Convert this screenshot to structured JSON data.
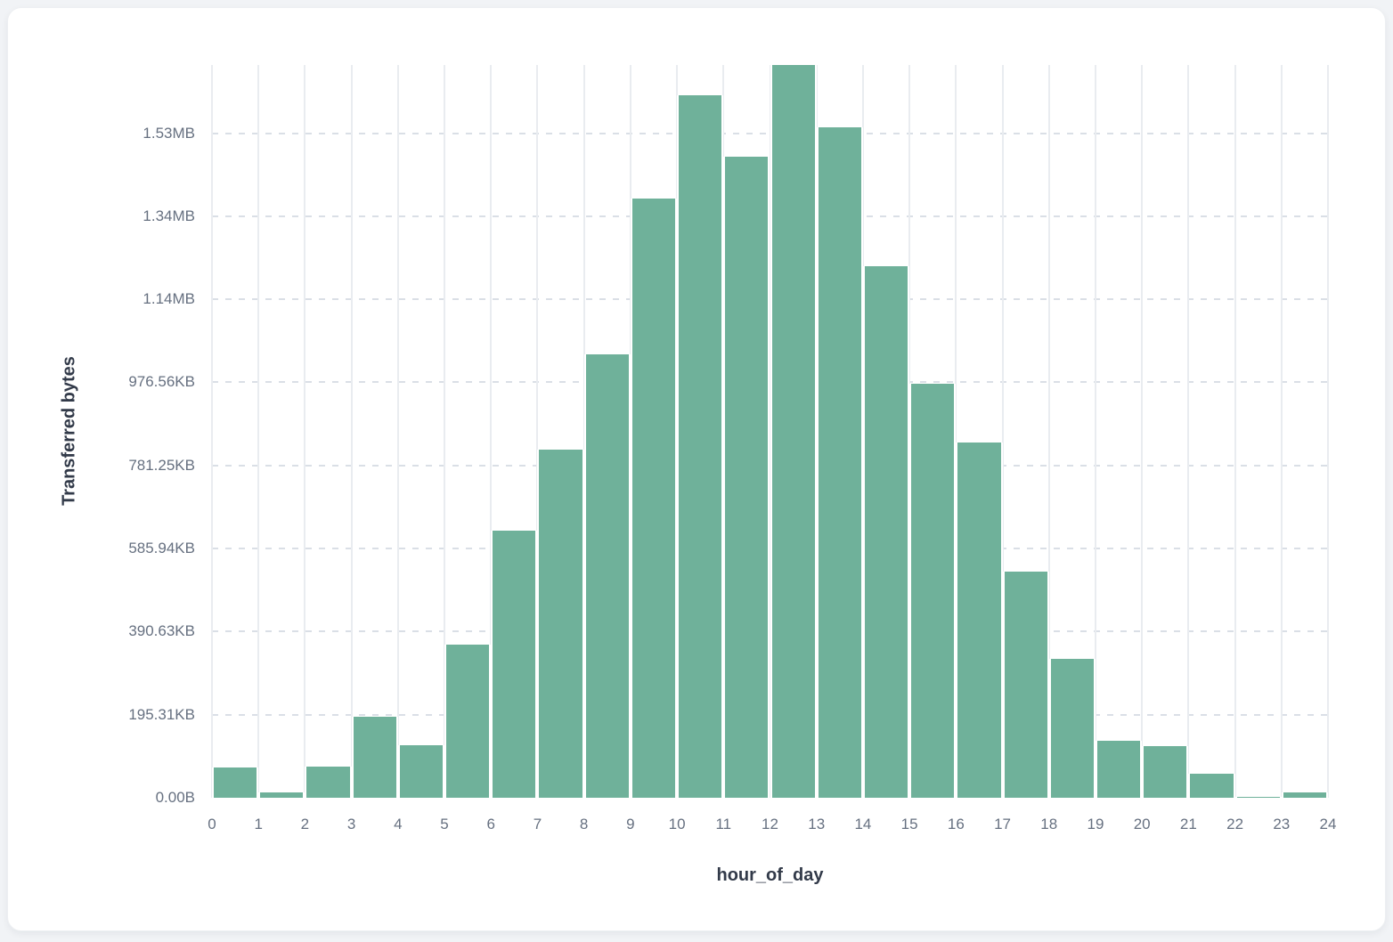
{
  "colors": {
    "bar_fill": "#6fb19a",
    "card_background": "#ffffff",
    "page_background": "#f1f3f6",
    "vertical_gridline": "#e9ecf0",
    "horizontal_gridline": "#dadfe6",
    "tick_text": "#667080",
    "axis_title_text": "#323a49"
  },
  "chart_data": {
    "type": "bar",
    "title": "",
    "xlabel": "hour_of_day",
    "ylabel": "Transferred bytes",
    "x": [
      0,
      1,
      2,
      3,
      4,
      5,
      6,
      7,
      8,
      9,
      10,
      11,
      12,
      13,
      14,
      15,
      16,
      17,
      18,
      19,
      20,
      21,
      22,
      23
    ],
    "values_bytes": [
      72000,
      13000,
      76000,
      195000,
      126000,
      369000,
      642000,
      838000,
      1068000,
      1443000,
      1692000,
      1544000,
      1764000,
      1615000,
      1280000,
      997000,
      856000,
      544000,
      334000,
      138000,
      124000,
      57000,
      3000,
      13000
    ],
    "x_tick_labels": [
      "0",
      "1",
      "2",
      "3",
      "4",
      "5",
      "6",
      "7",
      "8",
      "9",
      "10",
      "11",
      "12",
      "13",
      "14",
      "15",
      "16",
      "17",
      "18",
      "19",
      "20",
      "21",
      "22",
      "23",
      "24"
    ],
    "y_ticks": [
      {
        "bytes": 0,
        "label": "0.00B"
      },
      {
        "bytes": 200000,
        "label": "195.31KB"
      },
      {
        "bytes": 400000,
        "label": "390.63KB"
      },
      {
        "bytes": 600000,
        "label": "585.94KB"
      },
      {
        "bytes": 800000,
        "label": "781.25KB"
      },
      {
        "bytes": 1000000,
        "label": "976.56KB"
      },
      {
        "bytes": 1200000,
        "label": "1.14MB"
      },
      {
        "bytes": 1400000,
        "label": "1.34MB"
      },
      {
        "bytes": 1600000,
        "label": "1.53MB"
      }
    ],
    "ylim": [
      0,
      1764000
    ],
    "grid": {
      "vertical": "solid",
      "horizontal": "dashed"
    },
    "legend": "none"
  }
}
